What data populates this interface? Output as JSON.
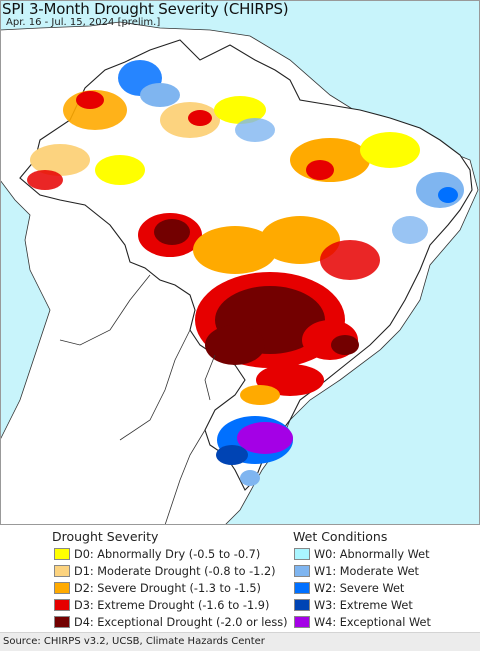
{
  "header": {
    "title": "SPI 3-Month Drought Severity (CHIRPS)",
    "subtitle": "Apr. 16 - Jul. 15, 2024 [prelim.]"
  },
  "colors": {
    "ocean": "#c8f4fb",
    "land": "#ffffff",
    "d0": "#ffff00",
    "d1": "#fcd37f",
    "d2": "#ffaa00",
    "d3": "#e60000",
    "d4": "#730000",
    "w0": "#aaf5ff",
    "w1": "#7fb5f0",
    "w2": "#0070ff",
    "w3": "#0044b4",
    "w4": "#a400e6"
  },
  "legend": {
    "drought_heading": "Drought Severity",
    "wet_heading": "Wet Conditions",
    "drought": [
      {
        "label": "D0: Abnormally Dry (-0.5 to -0.7)",
        "color": "#ffff00"
      },
      {
        "label": "D1: Moderate Drought (-0.8 to -1.2)",
        "color": "#fcd37f"
      },
      {
        "label": "D2: Severe Drought (-1.3 to -1.5)",
        "color": "#ffaa00"
      },
      {
        "label": "D3: Extreme Drought (-1.6 to -1.9)",
        "color": "#e60000"
      },
      {
        "label": "D4: Exceptional Drought (-2.0 or less)",
        "color": "#730000"
      }
    ],
    "wet": [
      {
        "label": "W0: Abnormally Wet",
        "color": "#aaf5ff"
      },
      {
        "label": "W1: Moderate Wet",
        "color": "#7fb5f0"
      },
      {
        "label": "W2: Severe Wet",
        "color": "#0070ff"
      },
      {
        "label": "W3: Extreme Wet",
        "color": "#0044b4"
      },
      {
        "label": "W4: Exceptional Wet",
        "color": "#a400e6"
      }
    ]
  },
  "footer": {
    "source": "Source: CHIRPS v3.2, UCSB, Climate Hazards Center"
  }
}
